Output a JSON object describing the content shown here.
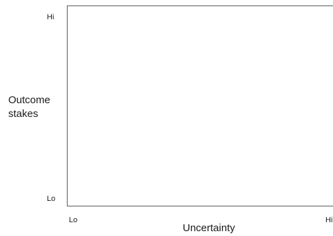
{
  "diagram": {
    "y_axis": {
      "title_lines": [
        "Outcome",
        "stakes"
      ],
      "high_label": "Hi",
      "low_label": "Lo"
    },
    "x_axis": {
      "title": "Uncertainty",
      "low_label": "Lo",
      "high_label": "Hi"
    }
  }
}
